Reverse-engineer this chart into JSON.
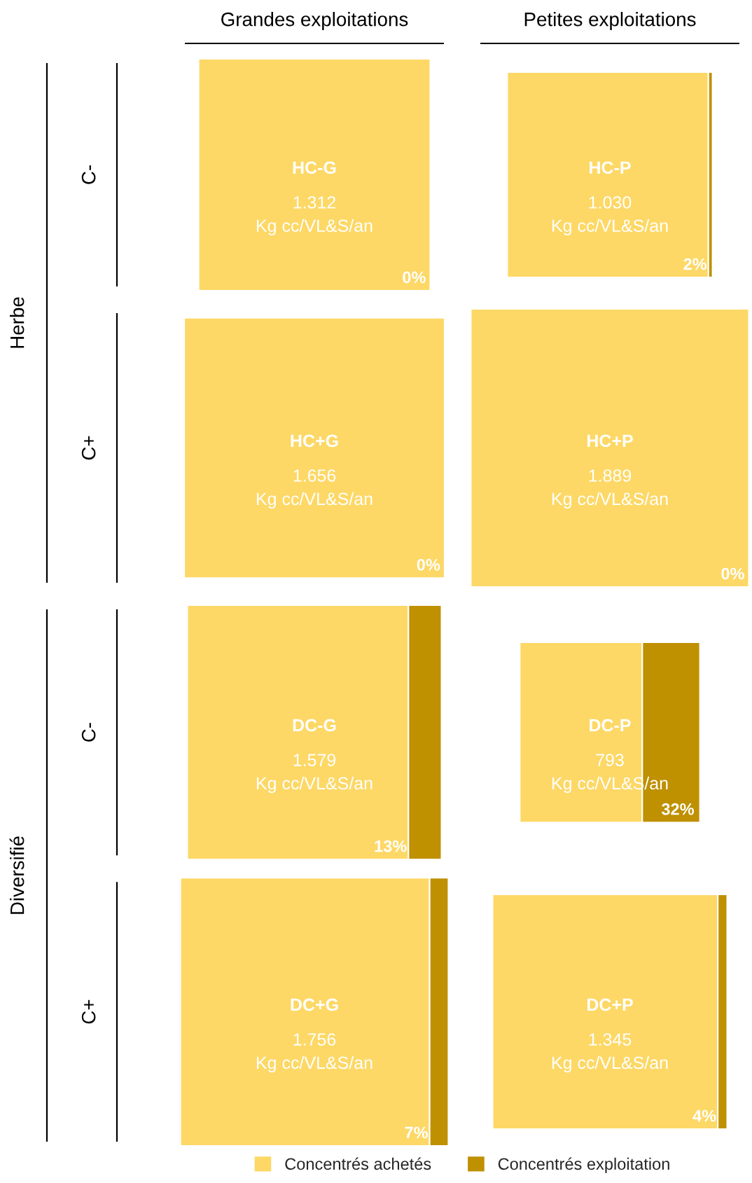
{
  "chart_data": [
    {
      "type": "other",
      "title": "Grandes exploitations",
      "categories": [
        "HC-G",
        "HC+G",
        "DC-G",
        "DC+G"
      ],
      "y_categories": [
        "C-",
        "C+",
        "C-",
        "C+"
      ],
      "y2_categories": [
        "Herbe",
        null,
        "Diversifié",
        null
      ],
      "values": [
        1312,
        1656,
        1579,
        1756
      ],
      "value_labels": [
        "1.312\nKg cc/VL&S/an",
        "1.656\nKg cc/VL&S/an",
        "1.579\nKg cc/VL&S/an",
        "1.756\nKg cc/VL&S/an"
      ],
      "series": [
        {
          "name": "Concentrés achetés",
          "color": "#fdd866",
          "values": [
            null,
            null,
            null,
            null
          ]
        },
        {
          "name": "Concentrés exploitation",
          "color": "#bf9000",
          "values": [
            0,
            0,
            13,
            7
          ],
          "value_labels": [
            "0%",
            "0%",
            "13%",
            "7%"
          ]
        }
      ],
      "legend": "bottom"
    },
    {
      "type": "other",
      "title": "Petites exploitations",
      "categories": [
        "HC-P",
        "HC+P",
        "DC-P",
        "DC+P"
      ],
      "values": [
        1030,
        1889,
        793,
        1345
      ],
      "value_labels": [
        "1.030\nKg cc/VL&S/an",
        "1.889\nKg cc/VL&S/an",
        "793\nKg cc/VL&S/an",
        "1.345\nKg cc/VL&S/an"
      ],
      "series": [
        {
          "color": "#fdd866",
          "values": [
            null,
            null,
            null,
            null
          ]
        },
        {
          "color": "#bf9000",
          "values": [
            2,
            0,
            32,
            4
          ],
          "value_labels": [
            "2%",
            "0%",
            "32%",
            "4%"
          ]
        }
      ]
    }
  ]
}
